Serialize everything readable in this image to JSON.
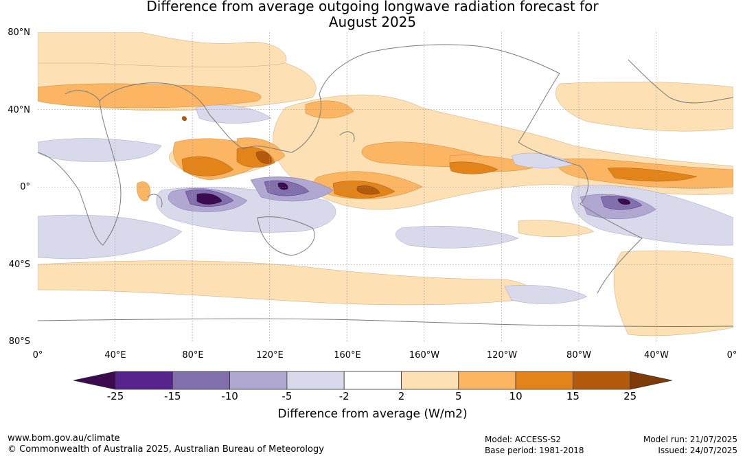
{
  "title": {
    "line1": "Difference from average outgoing longwave radiation forecast for",
    "line2": "August 2025"
  },
  "map": {
    "lat_labels": [
      "80°N",
      "40°N",
      "0°",
      "40°S",
      "80°S"
    ],
    "lon_labels": [
      "0°",
      "40°E",
      "80°E",
      "120°E",
      "160°E",
      "160°W",
      "120°W",
      "80°W",
      "40°W",
      "0°"
    ],
    "projection": "equirectangular, 0° to 360° longitude, 80°N to 80°S",
    "gridlines": true
  },
  "colorbar": {
    "ticks": [
      "-25",
      "-15",
      "-10",
      "-5",
      "-2",
      "2",
      "5",
      "10",
      "15",
      "25"
    ],
    "colors": [
      "#3b0a4f",
      "#58238c",
      "#8270ad",
      "#b0a8d1",
      "#d9d9ec",
      "#ffffff",
      "#fde0b4",
      "#fbb563",
      "#e3841a",
      "#b45a0c",
      "#7f3b07"
    ],
    "label": "Difference from average (W/m2)",
    "extend": "both"
  },
  "footer": {
    "url": "www.bom.gov.au/climate",
    "copyright": "© Commonwealth of Australia 2025, Australian Bureau of Meteorology",
    "model": "Model: ACCESS-S2",
    "base_period": "Base period: 1981-2018",
    "model_run": "Model run: 21/07/2025",
    "issued": "Issued: 24/07/2025"
  }
}
